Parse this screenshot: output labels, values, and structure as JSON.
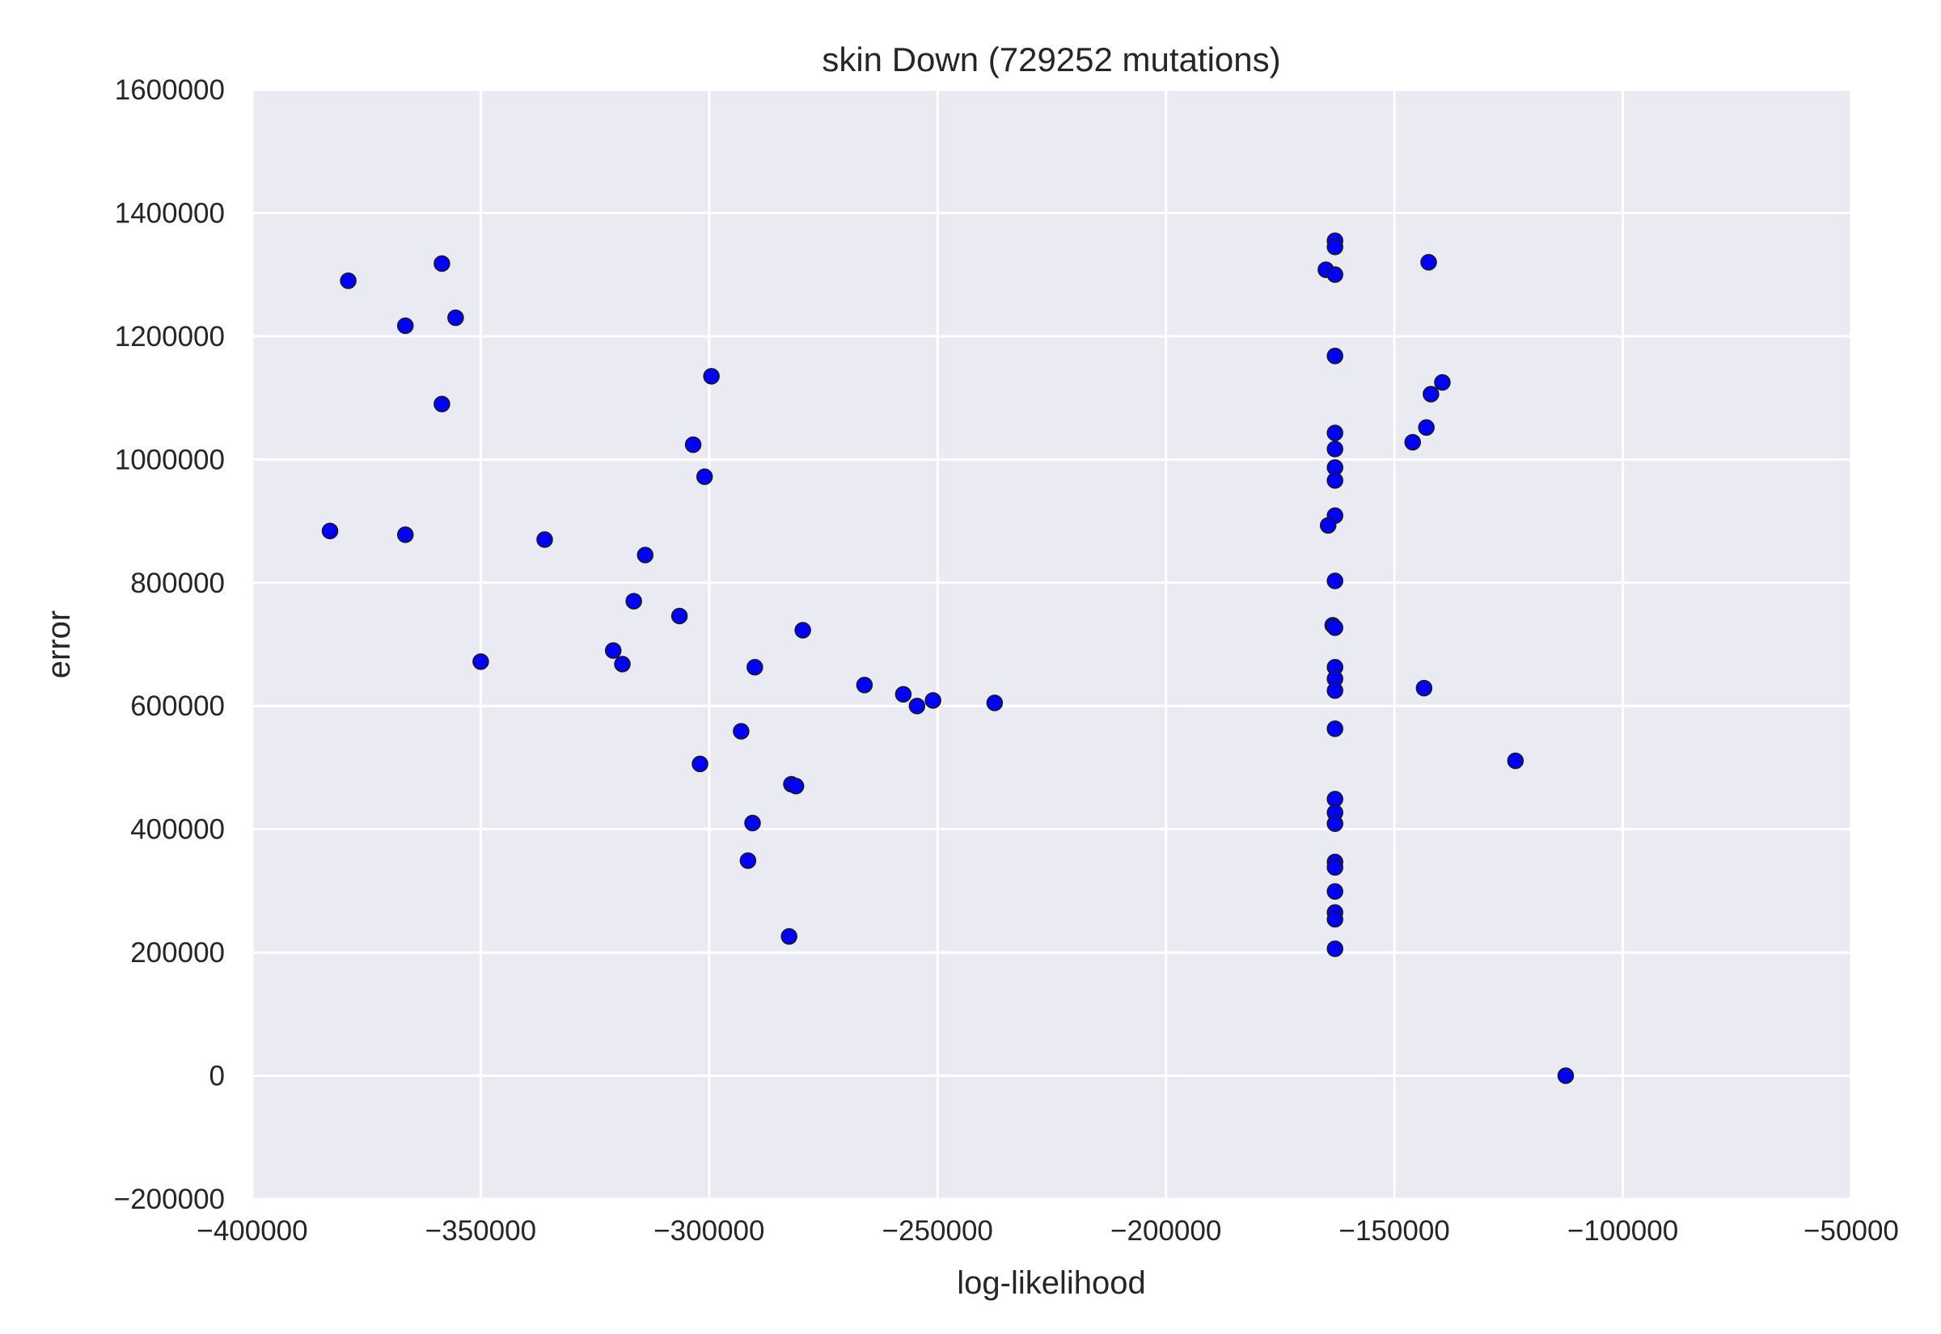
{
  "chart_data": {
    "type": "scatter",
    "title": "skin Down (729252 mutations)",
    "xlabel": "log-likelihood",
    "ylabel": "error",
    "xlim": [
      -400000,
      -50000
    ],
    "ylim": [
      -200000,
      1600000
    ],
    "xticks": [
      -400000,
      -350000,
      -300000,
      -250000,
      -200000,
      -150000,
      -100000,
      -50000
    ],
    "yticks": [
      -200000,
      0,
      200000,
      400000,
      600000,
      800000,
      1000000,
      1200000,
      1400000,
      1600000
    ],
    "xtick_labels": [
      "−400000",
      "−350000",
      "−300000",
      "−250000",
      "−200000",
      "−150000",
      "−100000",
      "−50000"
    ],
    "ytick_labels": [
      "−200000",
      "0",
      "200000",
      "400000",
      "600000",
      "800000",
      "1000000",
      "1200000",
      "1400000",
      "1600000"
    ],
    "grid": true,
    "colors": {
      "background": "#eaeaf2",
      "point": "#0000ff",
      "grid": "#ffffff"
    },
    "points": [
      [
        -379000,
        1290000
      ],
      [
        -358500,
        1318000
      ],
      [
        -355500,
        1230000
      ],
      [
        -366500,
        1217000
      ],
      [
        -358500,
        1090000
      ],
      [
        -383000,
        884000
      ],
      [
        -366500,
        878000
      ],
      [
        -336000,
        870000
      ],
      [
        -350000,
        672000
      ],
      [
        -314000,
        845000
      ],
      [
        -316500,
        770000
      ],
      [
        -306500,
        746000
      ],
      [
        -321000,
        690000
      ],
      [
        -319000,
        668000
      ],
      [
        -299500,
        1135000
      ],
      [
        -303500,
        1024000
      ],
      [
        -301000,
        972000
      ],
      [
        -290000,
        663000
      ],
      [
        -279500,
        723000
      ],
      [
        -293000,
        559000
      ],
      [
        -302000,
        506000
      ],
      [
        -282000,
        473000
      ],
      [
        -281000,
        470000
      ],
      [
        -290500,
        410000
      ],
      [
        -291500,
        349000
      ],
      [
        -282500,
        226000
      ],
      [
        -266000,
        634000
      ],
      [
        -257500,
        619000
      ],
      [
        -254500,
        600000
      ],
      [
        -251000,
        609000
      ],
      [
        -237500,
        605000
      ],
      [
        -163000,
        1355000
      ],
      [
        -163000,
        1345000
      ],
      [
        -165000,
        1308000
      ],
      [
        -163000,
        1300000
      ],
      [
        -163000,
        1168000
      ],
      [
        -163000,
        1043000
      ],
      [
        -163000,
        1017000
      ],
      [
        -163000,
        987000
      ],
      [
        -163000,
        966000
      ],
      [
        -163000,
        909000
      ],
      [
        -164500,
        893000
      ],
      [
        -163000,
        803000
      ],
      [
        -163500,
        731000
      ],
      [
        -163000,
        727000
      ],
      [
        -163000,
        663000
      ],
      [
        -163000,
        644000
      ],
      [
        -163000,
        625000
      ],
      [
        -163000,
        563000
      ],
      [
        -163000,
        449000
      ],
      [
        -163000,
        427000
      ],
      [
        -163000,
        409000
      ],
      [
        -163000,
        347000
      ],
      [
        -163000,
        338000
      ],
      [
        -163000,
        299000
      ],
      [
        -163000,
        265000
      ],
      [
        -163000,
        254000
      ],
      [
        -163000,
        206000
      ],
      [
        -142500,
        1320000
      ],
      [
        -139500,
        1125000
      ],
      [
        -142000,
        1106000
      ],
      [
        -143000,
        1052000
      ],
      [
        -146000,
        1028000
      ],
      [
        -143500,
        629000
      ],
      [
        -123500,
        511000
      ],
      [
        -112500,
        0
      ]
    ]
  }
}
